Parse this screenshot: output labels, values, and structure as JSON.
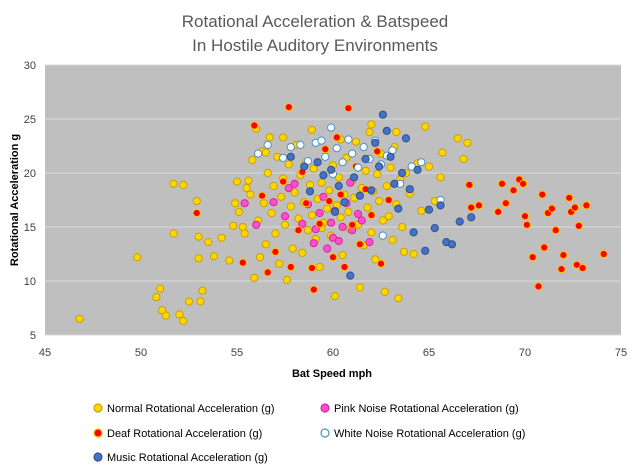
{
  "chart_data": {
    "type": "scatter",
    "title": [
      "Rotational Acceleration & Batspeed",
      "In Hostile Auditory Environments"
    ],
    "xlabel": "Bat Speed mph",
    "ylabel": "Rotational Acceleration g",
    "xlim": [
      45,
      75
    ],
    "ylim": [
      5,
      30
    ],
    "xticks": [
      45,
      50,
      55,
      60,
      65,
      70,
      75
    ],
    "yticks": [
      5,
      10,
      15,
      20,
      25,
      30
    ],
    "grid": true,
    "legend_position": "bottom",
    "series": [
      {
        "name": "Normal Rotational Acceleration (g)",
        "color": "#FFD700",
        "stroke": "#C9A000",
        "points": [
          [
            46.8,
            6.5
          ],
          [
            49.8,
            12.2
          ],
          [
            50.8,
            8.5
          ],
          [
            51.0,
            9.3
          ],
          [
            51.1,
            7.3
          ],
          [
            51.3,
            6.8
          ],
          [
            51.7,
            14.4
          ],
          [
            51.7,
            19.0
          ],
          [
            52.0,
            6.9
          ],
          [
            52.2,
            6.3
          ],
          [
            52.2,
            18.9
          ],
          [
            52.5,
            8.1
          ],
          [
            52.9,
            17.4
          ],
          [
            53.0,
            14.1
          ],
          [
            53.0,
            12.1
          ],
          [
            53.1,
            8.1
          ],
          [
            53.2,
            9.1
          ],
          [
            53.5,
            13.6
          ],
          [
            53.8,
            12.3
          ],
          [
            54.2,
            14.0
          ],
          [
            54.6,
            11.9
          ],
          [
            54.8,
            15.1
          ],
          [
            54.9,
            17.2
          ],
          [
            55.0,
            19.2
          ],
          [
            55.1,
            16.4
          ],
          [
            55.3,
            15.0
          ],
          [
            55.4,
            14.4
          ],
          [
            55.5,
            18.6
          ],
          [
            55.6,
            19.3
          ],
          [
            55.7,
            18.0
          ],
          [
            55.8,
            21.2
          ],
          [
            55.9,
            10.3
          ],
          [
            56.0,
            24.1
          ],
          [
            56.1,
            15.6
          ],
          [
            56.2,
            12.2
          ],
          [
            56.3,
            22.0
          ],
          [
            56.4,
            17.2
          ],
          [
            56.5,
            13.4
          ],
          [
            56.6,
            20.0
          ],
          [
            56.7,
            23.3
          ],
          [
            56.8,
            16.3
          ],
          [
            56.9,
            18.8
          ],
          [
            57.0,
            14.4
          ],
          [
            57.1,
            21.5
          ],
          [
            57.2,
            11.6
          ],
          [
            57.3,
            17.8
          ],
          [
            57.4,
            19.5
          ],
          [
            57.5,
            15.2
          ],
          [
            57.6,
            10.1
          ],
          [
            57.7,
            20.8
          ],
          [
            57.8,
            16.9
          ],
          [
            57.9,
            13.0
          ],
          [
            58.0,
            18.2
          ],
          [
            58.1,
            22.6
          ],
          [
            58.2,
            15.8
          ],
          [
            58.3,
            19.8
          ],
          [
            58.4,
            12.6
          ],
          [
            58.5,
            17.3
          ],
          [
            58.6,
            21.0
          ],
          [
            58.7,
            14.7
          ],
          [
            58.8,
            18.9
          ],
          [
            58.9,
            16.1
          ],
          [
            59.0,
            20.4
          ],
          [
            59.1,
            13.9
          ],
          [
            59.2,
            17.6
          ],
          [
            59.3,
            11.3
          ],
          [
            59.4,
            19.1
          ],
          [
            59.5,
            15.4
          ],
          [
            59.6,
            22.2
          ],
          [
            59.7,
            16.7
          ],
          [
            59.8,
            18.4
          ],
          [
            59.9,
            14.2
          ],
          [
            60.0,
            20.7
          ],
          [
            60.1,
            8.6
          ],
          [
            60.2,
            17.0
          ],
          [
            60.3,
            19.6
          ],
          [
            60.4,
            15.9
          ],
          [
            60.5,
            12.4
          ],
          [
            60.6,
            18.0
          ],
          [
            60.7,
            21.4
          ],
          [
            60.8,
            16.4
          ],
          [
            60.9,
            14.8
          ],
          [
            61.0,
            19.3
          ],
          [
            61.1,
            17.7
          ],
          [
            61.2,
            22.9
          ],
          [
            61.3,
            15.2
          ],
          [
            61.4,
            9.4
          ],
          [
            61.5,
            18.6
          ],
          [
            61.6,
            13.3
          ],
          [
            61.7,
            20.2
          ],
          [
            61.8,
            16.8
          ],
          [
            61.9,
            23.8
          ],
          [
            62.0,
            14.5
          ],
          [
            62.1,
            18.3
          ],
          [
            62.2,
            12.0
          ],
          [
            62.3,
            19.9
          ],
          [
            62.4,
            17.4
          ],
          [
            62.5,
            21.8
          ],
          [
            62.6,
            15.6
          ],
          [
            62.7,
            9.0
          ],
          [
            62.8,
            18.8
          ],
          [
            62.9,
            16.0
          ],
          [
            63.0,
            20.5
          ],
          [
            63.1,
            13.8
          ],
          [
            63.2,
            22.4
          ],
          [
            63.3,
            17.1
          ],
          [
            63.4,
            8.4
          ],
          [
            63.5,
            19.4
          ],
          [
            63.6,
            15.0
          ],
          [
            63.7,
            12.7
          ],
          [
            63.8,
            20.0
          ],
          [
            64.0,
            18.1
          ],
          [
            64.2,
            12.5
          ],
          [
            64.4,
            20.9
          ],
          [
            64.6,
            16.5
          ],
          [
            64.8,
            24.3
          ],
          [
            65.0,
            20.6
          ],
          [
            65.3,
            17.4
          ],
          [
            65.6,
            19.6
          ],
          [
            65.7,
            21.9
          ],
          [
            66.5,
            23.2
          ],
          [
            66.8,
            21.3
          ],
          [
            67.0,
            22.8
          ],
          [
            56.5,
            21.9
          ],
          [
            57.4,
            23.3
          ],
          [
            58.9,
            24.0
          ],
          [
            60.4,
            23.1
          ],
          [
            62.0,
            24.5
          ],
          [
            63.3,
            23.8
          ],
          [
            59.4,
            14.9
          ]
        ]
      },
      {
        "name": "Pink Noise Rotational Acceleration (g)",
        "color": "#FF4FCB",
        "stroke": "#D4289F",
        "points": [
          [
            55.4,
            17.2
          ],
          [
            56.0,
            15.2
          ],
          [
            56.9,
            17.3
          ],
          [
            57.5,
            16.0
          ],
          [
            58.0,
            19.0
          ],
          [
            58.4,
            15.3
          ],
          [
            58.7,
            17.1
          ],
          [
            59.0,
            13.5
          ],
          [
            59.1,
            14.8
          ],
          [
            59.3,
            16.3
          ],
          [
            59.5,
            17.8
          ],
          [
            59.7,
            13.0
          ],
          [
            59.9,
            15.4
          ],
          [
            60.0,
            14.0
          ],
          [
            60.1,
            16.5
          ],
          [
            60.3,
            13.7
          ],
          [
            60.5,
            15.0
          ],
          [
            60.7,
            17.2
          ],
          [
            61.0,
            14.7
          ],
          [
            61.3,
            16.2
          ],
          [
            61.5,
            15.6
          ],
          [
            61.9,
            13.6
          ],
          [
            57.7,
            18.6
          ],
          [
            60.9,
            19.1
          ]
        ]
      },
      {
        "name": "Deaf Rotational Acceleration (g)",
        "color": "#FF0000",
        "stroke": "#FFC000",
        "points": [
          [
            52.9,
            16.3
          ],
          [
            55.3,
            11.7
          ],
          [
            55.9,
            24.4
          ],
          [
            56.3,
            17.9
          ],
          [
            56.6,
            10.8
          ],
          [
            57.0,
            12.7
          ],
          [
            57.4,
            19.2
          ],
          [
            57.7,
            26.1
          ],
          [
            57.8,
            11.3
          ],
          [
            58.2,
            14.7
          ],
          [
            58.4,
            20.1
          ],
          [
            58.6,
            17.2
          ],
          [
            58.9,
            11.2
          ],
          [
            59.0,
            9.2
          ],
          [
            59.3,
            15.3
          ],
          [
            59.6,
            22.2
          ],
          [
            59.8,
            17.4
          ],
          [
            60.0,
            12.2
          ],
          [
            60.2,
            23.3
          ],
          [
            60.4,
            18.0
          ],
          [
            60.6,
            11.3
          ],
          [
            60.8,
            26.0
          ],
          [
            61.0,
            15.2
          ],
          [
            61.2,
            20.6
          ],
          [
            61.4,
            13.4
          ],
          [
            61.7,
            18.5
          ],
          [
            62.0,
            16.1
          ],
          [
            62.3,
            22.0
          ],
          [
            62.5,
            11.6
          ],
          [
            62.9,
            17.5
          ],
          [
            67.1,
            18.9
          ],
          [
            67.2,
            16.8
          ],
          [
            67.6,
            17.0
          ],
          [
            68.6,
            16.4
          ],
          [
            68.8,
            19.0
          ],
          [
            69.0,
            17.2
          ],
          [
            69.4,
            18.4
          ],
          [
            69.7,
            19.4
          ],
          [
            69.9,
            19.0
          ],
          [
            70.0,
            16.0
          ],
          [
            70.1,
            15.2
          ],
          [
            70.4,
            12.2
          ],
          [
            70.7,
            9.5
          ],
          [
            70.9,
            18.0
          ],
          [
            71.0,
            13.1
          ],
          [
            71.2,
            16.3
          ],
          [
            71.4,
            16.7
          ],
          [
            71.6,
            14.7
          ],
          [
            71.9,
            11.1
          ],
          [
            72.0,
            12.4
          ],
          [
            72.3,
            17.7
          ],
          [
            72.4,
            16.4
          ],
          [
            72.6,
            16.8
          ],
          [
            72.7,
            11.5
          ],
          [
            72.8,
            15.1
          ],
          [
            73.0,
            11.2
          ],
          [
            73.2,
            17.0
          ],
          [
            74.1,
            12.5
          ]
        ]
      },
      {
        "name": "White Noise Rotational Acceleration (g)",
        "color": "#FFFFFF",
        "stroke": "#4A90C8",
        "points": [
          [
            56.1,
            21.8
          ],
          [
            56.6,
            22.6
          ],
          [
            57.4,
            21.4
          ],
          [
            57.8,
            22.4
          ],
          [
            58.3,
            22.6
          ],
          [
            58.7,
            21.1
          ],
          [
            59.1,
            22.8
          ],
          [
            59.4,
            23.0
          ],
          [
            59.6,
            21.5
          ],
          [
            59.9,
            24.2
          ],
          [
            60.2,
            22.3
          ],
          [
            60.5,
            21.0
          ],
          [
            60.8,
            23.1
          ],
          [
            61.0,
            21.8
          ],
          [
            61.3,
            20.5
          ],
          [
            61.6,
            22.4
          ],
          [
            61.9,
            21.3
          ],
          [
            62.2,
            23.0
          ],
          [
            62.5,
            20.8
          ],
          [
            62.8,
            21.6
          ],
          [
            63.1,
            22.1
          ],
          [
            63.5,
            19.0
          ],
          [
            64.1,
            20.6
          ],
          [
            64.6,
            21.0
          ],
          [
            65.6,
            17.5
          ],
          [
            62.6,
            14.2
          ],
          [
            60.0,
            19.9
          ]
        ]
      },
      {
        "name": "Music Rotational Acceleration (g)",
        "color": "#4472C4",
        "stroke": "#2F528F",
        "points": [
          [
            57.8,
            21.5
          ],
          [
            58.5,
            20.6
          ],
          [
            58.8,
            18.3
          ],
          [
            59.2,
            21.0
          ],
          [
            59.5,
            19.8
          ],
          [
            59.9,
            20.3
          ],
          [
            60.1,
            16.4
          ],
          [
            60.3,
            18.8
          ],
          [
            60.6,
            17.3
          ],
          [
            60.9,
            10.5
          ],
          [
            61.1,
            19.6
          ],
          [
            61.4,
            17.9
          ],
          [
            61.7,
            21.3
          ],
          [
            62.0,
            18.4
          ],
          [
            62.2,
            22.8
          ],
          [
            62.4,
            20.6
          ],
          [
            62.6,
            25.4
          ],
          [
            62.8,
            23.9
          ],
          [
            63.0,
            21.5
          ],
          [
            63.2,
            19.0
          ],
          [
            63.4,
            16.7
          ],
          [
            63.6,
            20.0
          ],
          [
            63.8,
            23.2
          ],
          [
            64.0,
            18.5
          ],
          [
            64.2,
            14.5
          ],
          [
            64.4,
            20.3
          ],
          [
            64.8,
            12.8
          ],
          [
            65.0,
            16.6
          ],
          [
            65.3,
            14.9
          ],
          [
            65.6,
            17.0
          ],
          [
            65.9,
            13.6
          ],
          [
            66.2,
            13.4
          ],
          [
            66.6,
            15.5
          ],
          [
            67.2,
            15.9
          ]
        ]
      }
    ]
  }
}
